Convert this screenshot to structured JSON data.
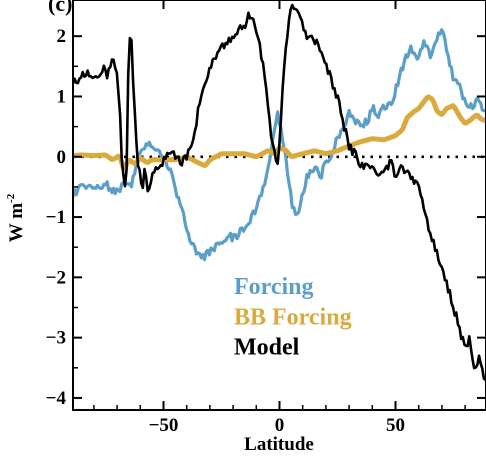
{
  "chart_data": {
    "type": "line",
    "panel_label": "(c)",
    "xlabel": "Latitude",
    "ylabel_main": "W m",
    "ylabel_sup": "-2",
    "xlim": [
      -89,
      89
    ],
    "ylim": [
      -4.2,
      2.6
    ],
    "x_ticks": [
      -50,
      0,
      50
    ],
    "x_tick_labels": [
      "−50",
      "0",
      "50"
    ],
    "y_ticks": [
      -4,
      -3,
      -2,
      -1,
      0,
      1,
      2
    ],
    "y_tick_labels": [
      "−4",
      "−3",
      "−2",
      "−1",
      "0",
      "1",
      "2"
    ],
    "zero_line": true,
    "legend": [
      {
        "label": "Forcing",
        "color": "#5b9fc8"
      },
      {
        "label": "BB Forcing",
        "color": "#d9aa3e"
      },
      {
        "label": "Model",
        "color": "#000000"
      }
    ],
    "series": [
      {
        "name": "Forcing",
        "color": "#5b9fc8",
        "x": [
          -89,
          -85,
          -80,
          -75,
          -70,
          -67,
          -64,
          -62,
          -60,
          -57,
          -55,
          -52,
          -50,
          -47,
          -45,
          -42,
          -40,
          -37,
          -35,
          -32,
          -30,
          -27,
          -25,
          -22,
          -20,
          -17,
          -15,
          -12,
          -10,
          -7,
          -5,
          -3,
          -1,
          0,
          2,
          4,
          6,
          8,
          10,
          12,
          15,
          18,
          20,
          23,
          25,
          27,
          30,
          33,
          35,
          38,
          40,
          43,
          45,
          48,
          50,
          53,
          55,
          57,
          60,
          62,
          65,
          67,
          70,
          72,
          75,
          78,
          80,
          83,
          85,
          87,
          89
        ],
        "y": [
          -0.6,
          -0.5,
          -0.55,
          -0.45,
          -0.6,
          -0.4,
          -0.5,
          -0.15,
          0.1,
          0.2,
          0.15,
          0.05,
          0.0,
          -0.2,
          -0.5,
          -0.9,
          -1.2,
          -1.5,
          -1.6,
          -1.65,
          -1.55,
          -1.5,
          -1.4,
          -1.3,
          -1.35,
          -1.25,
          -1.2,
          -1.0,
          -0.85,
          -0.5,
          -0.2,
          0.3,
          0.7,
          0.6,
          0.2,
          -0.4,
          -0.9,
          -1.0,
          -0.6,
          -0.3,
          -0.2,
          -0.3,
          -0.1,
          0.1,
          0.3,
          0.5,
          0.7,
          0.6,
          0.5,
          0.6,
          0.8,
          0.7,
          0.85,
          0.9,
          1.1,
          1.5,
          1.7,
          1.8,
          1.65,
          1.9,
          1.7,
          1.9,
          2.1,
          1.8,
          1.3,
          1.15,
          0.9,
          0.8,
          1.0,
          0.85,
          0.75
        ]
      },
      {
        "name": "BB Forcing",
        "color": "#d9aa3e",
        "x": [
          -89,
          -85,
          -80,
          -75,
          -72,
          -69,
          -67,
          -65,
          -62,
          -60,
          -57,
          -55,
          -50,
          -45,
          -40,
          -35,
          -32,
          -30,
          -25,
          -20,
          -15,
          -10,
          -5,
          -2,
          0,
          3,
          5,
          10,
          15,
          20,
          25,
          30,
          35,
          40,
          45,
          50,
          53,
          55,
          58,
          60,
          62,
          64,
          66,
          68,
          70,
          72,
          75,
          78,
          80,
          82,
          85,
          87,
          89
        ],
        "y": [
          0.02,
          0.03,
          0.02,
          0.03,
          -0.05,
          0.02,
          -0.22,
          -0.05,
          -0.12,
          -0.02,
          -0.1,
          -0.05,
          -0.05,
          -0.05,
          0.0,
          -0.1,
          -0.15,
          -0.05,
          0.05,
          0.05,
          0.05,
          0.0,
          0.1,
          0.05,
          0.15,
          0.1,
          0.0,
          0.05,
          0.1,
          0.05,
          0.1,
          0.18,
          0.25,
          0.3,
          0.28,
          0.35,
          0.45,
          0.65,
          0.75,
          0.8,
          0.9,
          1.0,
          0.95,
          0.75,
          0.7,
          0.8,
          0.85,
          0.65,
          0.55,
          0.6,
          0.7,
          0.62,
          0.6
        ]
      },
      {
        "name": "Model",
        "color": "#000000",
        "x": [
          -89,
          -86,
          -82,
          -79,
          -76,
          -74,
          -72,
          -70,
          -69,
          -68,
          -67,
          -66,
          -65,
          -64,
          -63,
          -62,
          -61,
          -60,
          -59,
          -58,
          -57,
          -55,
          -52,
          -50,
          -47,
          -45,
          -42,
          -40,
          -37,
          -35,
          -32,
          -30,
          -27,
          -25,
          -22,
          -20,
          -17,
          -15,
          -13,
          -11,
          -9,
          -7,
          -5,
          -3,
          -1,
          0,
          2,
          4,
          6,
          8,
          10,
          12,
          15,
          18,
          20,
          23,
          25,
          27,
          30,
          33,
          35,
          38,
          40,
          43,
          45,
          48,
          50,
          53,
          55,
          58,
          60,
          63,
          65,
          68,
          70,
          72,
          75,
          78,
          80,
          82,
          84,
          86,
          88,
          89
        ],
        "y": [
          1.2,
          1.3,
          1.4,
          1.25,
          1.5,
          1.35,
          1.7,
          1.3,
          0.9,
          0.0,
          -0.5,
          -0.4,
          1.8,
          2.1,
          1.2,
          0.4,
          -0.1,
          -0.3,
          -0.5,
          -0.2,
          -0.6,
          -0.3,
          -0.15,
          -0.05,
          0.05,
          0.0,
          -0.1,
          0.0,
          0.3,
          0.8,
          1.2,
          1.5,
          1.7,
          1.8,
          1.9,
          2.0,
          2.1,
          2.2,
          2.35,
          2.3,
          1.9,
          1.5,
          0.8,
          0.2,
          -0.2,
          0.3,
          1.5,
          2.3,
          2.5,
          2.4,
          2.2,
          2.0,
          1.9,
          1.8,
          1.5,
          1.2,
          1.0,
          0.6,
          0.2,
          0.0,
          -0.1,
          -0.2,
          -0.1,
          -0.3,
          -0.2,
          -0.1,
          -0.3,
          -0.2,
          -0.3,
          -0.4,
          -0.5,
          -1.0,
          -1.3,
          -1.6,
          -1.9,
          -2.1,
          -2.5,
          -2.9,
          -3.2,
          -3.0,
          -3.5,
          -3.3,
          -3.6,
          -3.8
        ]
      }
    ]
  }
}
